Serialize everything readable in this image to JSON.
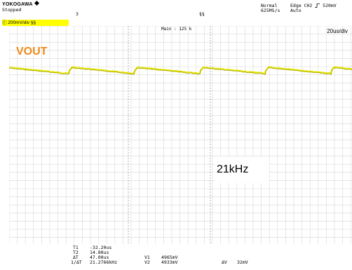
{
  "header": {
    "brand": "YOKOGAWA",
    "brand_icon": "diamond-icon",
    "status": "Stopped",
    "count": "3",
    "marker": "§§",
    "mode": "Normal",
    "sample_rate": "625MS/s",
    "trigger_type": "Edge CH2",
    "trigger_slope_icon": "rising-edge-icon",
    "trigger_level": "520mV",
    "trigger_mode": "Auto"
  },
  "channel": {
    "label": "ⓒ 200mV/div §§",
    "color": "#ffff00"
  },
  "display": {
    "main_label": "Main : 125 k",
    "timebase": "20us/div",
    "trace_label": "VOUT",
    "trace_label_color": "#f08a1c",
    "trace_color": "#e6e600",
    "annotation": "21kHz"
  },
  "measurements": {
    "t1_label": "T1",
    "t1_value": "-32.20us",
    "t2_label": "T2",
    "t2_value": "14.80us",
    "dt_label": "ΔT",
    "dt_value": "47.00us",
    "inv_dt_label": "1/ΔT",
    "inv_dt_value": "21.2766kHz",
    "v1_label": "V1",
    "v1_value": "4965mV",
    "v2_label": "V2",
    "v2_value": "4933mV",
    "dv_label": "ΔV",
    "dv_value": "32mV"
  }
}
